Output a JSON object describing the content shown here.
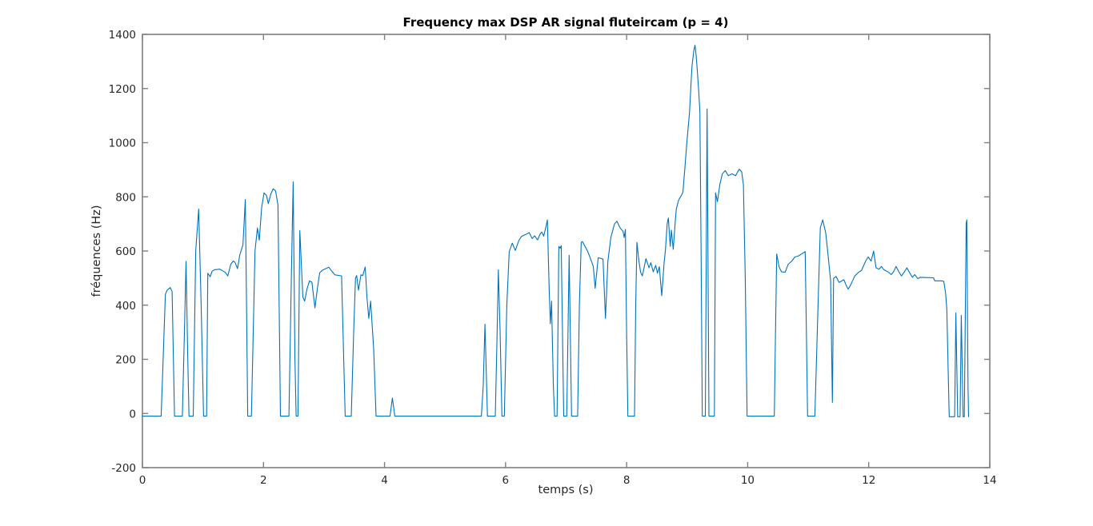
{
  "figure": {
    "title": "Frequency max DSP AR signal fluteircam (p = 4)",
    "xlabel": "temps (s)",
    "ylabel": "fréquences (Hz)"
  },
  "chart_data": {
    "type": "line",
    "title": "Frequency max DSP AR signal fluteircam (p = 4)",
    "xlabel": "temps (s)",
    "ylabel": "fréquences (Hz)",
    "xlim": [
      0,
      14
    ],
    "ylim": [
      -200,
      1400
    ],
    "x_ticks": [
      0,
      2,
      4,
      6,
      8,
      10,
      12,
      14
    ],
    "y_ticks": [
      -200,
      0,
      200,
      400,
      600,
      800,
      1000,
      1200,
      1400
    ],
    "grid": false,
    "legend": "none",
    "line_color": "#0072bd",
    "axis_color": "#7f7f7f",
    "tick_label_color": "#262626",
    "background_color": "#ffffff",
    "points": [
      [
        0.0,
        -10
      ],
      [
        0.31,
        -10
      ],
      [
        0.38,
        440
      ],
      [
        0.41,
        456
      ],
      [
        0.46,
        465
      ],
      [
        0.49,
        450
      ],
      [
        0.53,
        -10
      ],
      [
        0.66,
        -10
      ],
      [
        0.7,
        350
      ],
      [
        0.72,
        562
      ],
      [
        0.75,
        200
      ],
      [
        0.77,
        -10
      ],
      [
        0.84,
        -10
      ],
      [
        0.88,
        600
      ],
      [
        0.93,
        755
      ],
      [
        0.97,
        400
      ],
      [
        1.01,
        -10
      ],
      [
        1.06,
        -10
      ],
      [
        1.08,
        518
      ],
      [
        1.12,
        505
      ],
      [
        1.15,
        525
      ],
      [
        1.19,
        531
      ],
      [
        1.28,
        533
      ],
      [
        1.37,
        521
      ],
      [
        1.41,
        508
      ],
      [
        1.46,
        551
      ],
      [
        1.5,
        563
      ],
      [
        1.53,
        558
      ],
      [
        1.57,
        535
      ],
      [
        1.61,
        587
      ],
      [
        1.66,
        622
      ],
      [
        1.7,
        790
      ],
      [
        1.72,
        400
      ],
      [
        1.74,
        -10
      ],
      [
        1.8,
        -10
      ],
      [
        1.86,
        600
      ],
      [
        1.9,
        685
      ],
      [
        1.93,
        640
      ],
      [
        1.97,
        760
      ],
      [
        2.01,
        815
      ],
      [
        2.05,
        805
      ],
      [
        2.08,
        775
      ],
      [
        2.12,
        810
      ],
      [
        2.16,
        830
      ],
      [
        2.2,
        822
      ],
      [
        2.24,
        770
      ],
      [
        2.28,
        -10
      ],
      [
        2.42,
        -10
      ],
      [
        2.46,
        500
      ],
      [
        2.49,
        855
      ],
      [
        2.52,
        200
      ],
      [
        2.54,
        -10
      ],
      [
        2.57,
        -10
      ],
      [
        2.6,
        676
      ],
      [
        2.65,
        430
      ],
      [
        2.68,
        415
      ],
      [
        2.72,
        460
      ],
      [
        2.76,
        490
      ],
      [
        2.8,
        485
      ],
      [
        2.85,
        390
      ],
      [
        2.89,
        460
      ],
      [
        2.93,
        520
      ],
      [
        2.98,
        530
      ],
      [
        3.03,
        535
      ],
      [
        3.08,
        540
      ],
      [
        3.13,
        525
      ],
      [
        3.18,
        512
      ],
      [
        3.24,
        510
      ],
      [
        3.29,
        508
      ],
      [
        3.35,
        -10
      ],
      [
        3.45,
        -10
      ],
      [
        3.49,
        300
      ],
      [
        3.52,
        500
      ],
      [
        3.54,
        509
      ],
      [
        3.57,
        455
      ],
      [
        3.61,
        512
      ],
      [
        3.64,
        509
      ],
      [
        3.68,
        541
      ],
      [
        3.71,
        430
      ],
      [
        3.74,
        351
      ],
      [
        3.77,
        415
      ],
      [
        3.82,
        238
      ],
      [
        3.86,
        -10
      ],
      [
        4.09,
        -10
      ],
      [
        4.13,
        57
      ],
      [
        4.17,
        -10
      ],
      [
        5.6,
        -10
      ],
      [
        5.63,
        100
      ],
      [
        5.66,
        330
      ],
      [
        5.7,
        -10
      ],
      [
        5.83,
        -10
      ],
      [
        5.86,
        300
      ],
      [
        5.88,
        531
      ],
      [
        5.91,
        305
      ],
      [
        5.94,
        -10
      ],
      [
        5.98,
        -10
      ],
      [
        6.02,
        400
      ],
      [
        6.06,
        597
      ],
      [
        6.11,
        629
      ],
      [
        6.16,
        602
      ],
      [
        6.22,
        639
      ],
      [
        6.26,
        653
      ],
      [
        6.31,
        659
      ],
      [
        6.35,
        663
      ],
      [
        6.39,
        668
      ],
      [
        6.44,
        646
      ],
      [
        6.48,
        656
      ],
      [
        6.53,
        641
      ],
      [
        6.57,
        663
      ],
      [
        6.6,
        670
      ],
      [
        6.63,
        655
      ],
      [
        6.67,
        692
      ],
      [
        6.69,
        715
      ],
      [
        6.72,
        464
      ],
      [
        6.74,
        331
      ],
      [
        6.76,
        415
      ],
      [
        6.79,
        100
      ],
      [
        6.81,
        -10
      ],
      [
        6.85,
        -10
      ],
      [
        6.88,
        617
      ],
      [
        6.9,
        610
      ],
      [
        6.92,
        620
      ],
      [
        6.96,
        -10
      ],
      [
        7.01,
        -10
      ],
      [
        7.05,
        584
      ],
      [
        7.09,
        -10
      ],
      [
        7.19,
        -10
      ],
      [
        7.22,
        400
      ],
      [
        7.25,
        632
      ],
      [
        7.27,
        635
      ],
      [
        7.32,
        614
      ],
      [
        7.36,
        597
      ],
      [
        7.41,
        568
      ],
      [
        7.45,
        543
      ],
      [
        7.48,
        462
      ],
      [
        7.53,
        575
      ],
      [
        7.57,
        573
      ],
      [
        7.61,
        570
      ],
      [
        7.65,
        351
      ],
      [
        7.69,
        562
      ],
      [
        7.74,
        651
      ],
      [
        7.8,
        700
      ],
      [
        7.84,
        710
      ],
      [
        7.89,
        686
      ],
      [
        7.94,
        673
      ],
      [
        7.96,
        650
      ],
      [
        7.98,
        680
      ],
      [
        8.0,
        300
      ],
      [
        8.02,
        -10
      ],
      [
        8.13,
        -10
      ],
      [
        8.15,
        400
      ],
      [
        8.17,
        632
      ],
      [
        8.2,
        568
      ],
      [
        8.23,
        523
      ],
      [
        8.26,
        508
      ],
      [
        8.32,
        572
      ],
      [
        8.37,
        538
      ],
      [
        8.4,
        557
      ],
      [
        8.44,
        523
      ],
      [
        8.48,
        547
      ],
      [
        8.51,
        518
      ],
      [
        8.54,
        542
      ],
      [
        8.58,
        435
      ],
      [
        8.62,
        557
      ],
      [
        8.64,
        602
      ],
      [
        8.67,
        700
      ],
      [
        8.69,
        722
      ],
      [
        8.72,
        617
      ],
      [
        8.74,
        677
      ],
      [
        8.77,
        606
      ],
      [
        8.8,
        700
      ],
      [
        8.82,
        755
      ],
      [
        8.86,
        789
      ],
      [
        8.89,
        800
      ],
      [
        8.91,
        808
      ],
      [
        8.93,
        818
      ],
      [
        8.96,
        900
      ],
      [
        8.99,
        986
      ],
      [
        9.04,
        1114
      ],
      [
        9.06,
        1202
      ],
      [
        9.08,
        1281
      ],
      [
        9.11,
        1340
      ],
      [
        9.13,
        1360
      ],
      [
        9.15,
        1320
      ],
      [
        9.17,
        1261
      ],
      [
        9.19,
        1192
      ],
      [
        9.21,
        1114
      ],
      [
        9.23,
        600
      ],
      [
        9.25,
        -10
      ],
      [
        9.3,
        -10
      ],
      [
        9.33,
        1125
      ],
      [
        9.36,
        -10
      ],
      [
        9.45,
        -10
      ],
      [
        9.47,
        815
      ],
      [
        9.5,
        782
      ],
      [
        9.54,
        845
      ],
      [
        9.58,
        885
      ],
      [
        9.63,
        897
      ],
      [
        9.68,
        878
      ],
      [
        9.74,
        885
      ],
      [
        9.8,
        878
      ],
      [
        9.86,
        902
      ],
      [
        9.9,
        893
      ],
      [
        9.93,
        845
      ],
      [
        9.96,
        500
      ],
      [
        9.99,
        -10
      ],
      [
        10.44,
        -10
      ],
      [
        10.46,
        300
      ],
      [
        10.48,
        589
      ],
      [
        10.52,
        540
      ],
      [
        10.56,
        523
      ],
      [
        10.62,
        522
      ],
      [
        10.67,
        551
      ],
      [
        10.73,
        563
      ],
      [
        10.78,
        578
      ],
      [
        10.84,
        582
      ],
      [
        10.91,
        592
      ],
      [
        10.95,
        598
      ],
      [
        10.97,
        300
      ],
      [
        10.99,
        -10
      ],
      [
        11.11,
        -10
      ],
      [
        11.15,
        300
      ],
      [
        11.2,
        686
      ],
      [
        11.24,
        715
      ],
      [
        11.29,
        666
      ],
      [
        11.33,
        582
      ],
      [
        11.37,
        489
      ],
      [
        11.4,
        41
      ],
      [
        11.42,
        499
      ],
      [
        11.46,
        506
      ],
      [
        11.51,
        484
      ],
      [
        11.55,
        489
      ],
      [
        11.59,
        494
      ],
      [
        11.63,
        472
      ],
      [
        11.66,
        459
      ],
      [
        11.7,
        474
      ],
      [
        11.77,
        508
      ],
      [
        11.84,
        523
      ],
      [
        11.88,
        528
      ],
      [
        11.95,
        563
      ],
      [
        11.99,
        578
      ],
      [
        12.04,
        563
      ],
      [
        12.08,
        600
      ],
      [
        12.12,
        538
      ],
      [
        12.17,
        533
      ],
      [
        12.21,
        543
      ],
      [
        12.25,
        531
      ],
      [
        12.32,
        523
      ],
      [
        12.37,
        513
      ],
      [
        12.41,
        523
      ],
      [
        12.45,
        543
      ],
      [
        12.5,
        523
      ],
      [
        12.54,
        508
      ],
      [
        12.59,
        523
      ],
      [
        12.63,
        538
      ],
      [
        12.68,
        518
      ],
      [
        12.72,
        503
      ],
      [
        12.76,
        513
      ],
      [
        12.81,
        498
      ],
      [
        12.85,
        503
      ],
      [
        12.95,
        502
      ],
      [
        13.07,
        501
      ],
      [
        13.09,
        490
      ],
      [
        13.2,
        490
      ],
      [
        13.24,
        488
      ],
      [
        13.27,
        444
      ],
      [
        13.29,
        385
      ],
      [
        13.33,
        -12
      ],
      [
        13.42,
        -12
      ],
      [
        13.44,
        371
      ],
      [
        13.47,
        -12
      ],
      [
        13.51,
        -12
      ],
      [
        13.53,
        362
      ],
      [
        13.56,
        -12
      ],
      [
        13.58,
        -12
      ],
      [
        13.61,
        702
      ],
      [
        13.62,
        715
      ],
      [
        13.64,
        100
      ],
      [
        13.65,
        -12
      ]
    ]
  }
}
